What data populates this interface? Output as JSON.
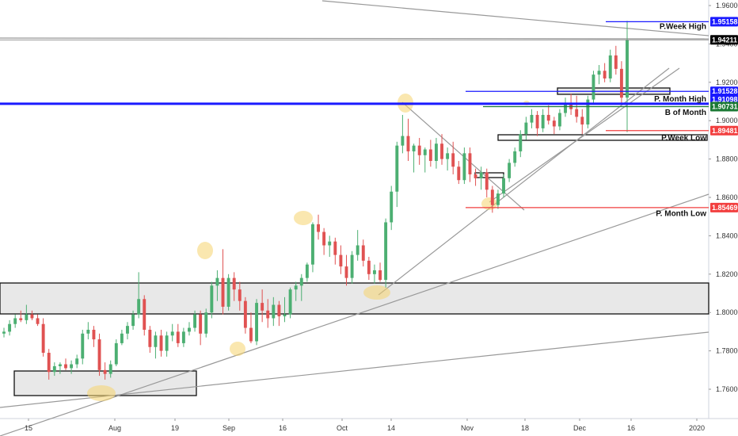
{
  "chart_data": {
    "type": "candlestick",
    "y_ticks": [
      "1.96000",
      "1.94000",
      "1.92000",
      "1.90000",
      "1.88000",
      "1.86000",
      "1.84000",
      "1.82000",
      "1.80000",
      "1.78000",
      "1.76000"
    ],
    "ylim": [
      1.7484,
      1.967
    ],
    "x_ticks": [
      "15",
      "Aug",
      "19",
      "Sep",
      "16",
      "Oct",
      "14",
      "Nov",
      "18",
      "Dec",
      "16",
      "2020"
    ],
    "colors": {
      "up": "#4caf72",
      "down": "#e05252",
      "zone": "#e8e8e8",
      "blue": "#1a1aff",
      "red": "#f23f3f",
      "green": "#1b7a35",
      "grey": "#999999",
      "highlight": "#f5d46e"
    },
    "price_badges": [
      {
        "label": "1.95158",
        "value": 1.95158,
        "color": "#1a1aff"
      },
      {
        "label": "1.94211",
        "value": 1.94211,
        "color": "#000000"
      },
      {
        "label": "1.91528",
        "value": 1.91528,
        "color": "#1a1aff"
      },
      {
        "label": "1.91098",
        "value": 1.91098,
        "color": "#1a1aff"
      },
      {
        "label": "1.90731",
        "value": 1.90731,
        "color": "#1b7a35"
      },
      {
        "label": "1.89481",
        "value": 1.89481,
        "color": "#f23f3f"
      },
      {
        "label": "1.85469",
        "value": 1.85469,
        "color": "#f23f3f"
      }
    ],
    "annotations": [
      {
        "text": "P.Week High",
        "value": 1.9494
      },
      {
        "text": "P. Month High",
        "value": 1.9117
      },
      {
        "text": "B of Month",
        "value": 1.9047
      },
      {
        "text": "P.Week Low",
        "value": 1.8915
      },
      {
        "text": "P. Month Low",
        "value": 1.852
      }
    ],
    "ohlc": [
      [
        1.789,
        1.792,
        1.787,
        1.79
      ],
      [
        1.79,
        1.796,
        1.788,
        1.794
      ],
      [
        1.794,
        1.799,
        1.792,
        1.797
      ],
      [
        1.797,
        1.801,
        1.795,
        1.796
      ],
      [
        1.796,
        1.804,
        1.794,
        1.799
      ],
      [
        1.799,
        1.801,
        1.796,
        1.797
      ],
      [
        1.797,
        1.799,
        1.793,
        1.794
      ],
      [
        1.794,
        1.797,
        1.777,
        1.779
      ],
      [
        1.779,
        1.781,
        1.765,
        1.769
      ],
      [
        1.769,
        1.774,
        1.767,
        1.772
      ],
      [
        1.772,
        1.774,
        1.768,
        1.773
      ],
      [
        1.773,
        1.776,
        1.77,
        1.771
      ],
      [
        1.771,
        1.775,
        1.768,
        1.773
      ],
      [
        1.773,
        1.778,
        1.771,
        1.776
      ],
      [
        1.776,
        1.791,
        1.773,
        1.789
      ],
      [
        1.789,
        1.795,
        1.786,
        1.791
      ],
      [
        1.791,
        1.793,
        1.782,
        1.786
      ],
      [
        1.786,
        1.789,
        1.767,
        1.77
      ],
      [
        1.77,
        1.774,
        1.765,
        1.768
      ],
      [
        1.768,
        1.775,
        1.766,
        1.773
      ],
      [
        1.773,
        1.786,
        1.772,
        1.784
      ],
      [
        1.784,
        1.791,
        1.783,
        1.789
      ],
      [
        1.789,
        1.795,
        1.786,
        1.793
      ],
      [
        1.793,
        1.801,
        1.791,
        1.799
      ],
      [
        1.799,
        1.821,
        1.797,
        1.807
      ],
      [
        1.807,
        1.809,
        1.788,
        1.791
      ],
      [
        1.791,
        1.793,
        1.779,
        1.782
      ],
      [
        1.782,
        1.79,
        1.776,
        1.788
      ],
      [
        1.788,
        1.791,
        1.777,
        1.78
      ],
      [
        1.78,
        1.79,
        1.777,
        1.788
      ],
      [
        1.788,
        1.794,
        1.785,
        1.79
      ],
      [
        1.79,
        1.794,
        1.782,
        1.784
      ],
      [
        1.784,
        1.792,
        1.782,
        1.79
      ],
      [
        1.79,
        1.795,
        1.788,
        1.792
      ],
      [
        1.792,
        1.801,
        1.79,
        1.799
      ],
      [
        1.799,
        1.801,
        1.783,
        1.789
      ],
      [
        1.789,
        1.802,
        1.787,
        1.8
      ],
      [
        1.8,
        1.816,
        1.797,
        1.814
      ],
      [
        1.814,
        1.822,
        1.806,
        1.818
      ],
      [
        1.818,
        1.833,
        1.799,
        1.803
      ],
      [
        1.803,
        1.82,
        1.801,
        1.818
      ],
      [
        1.818,
        1.821,
        1.806,
        1.812
      ],
      [
        1.812,
        1.816,
        1.801,
        1.806
      ],
      [
        1.806,
        1.808,
        1.789,
        1.792
      ],
      [
        1.792,
        1.8,
        1.784,
        1.785
      ],
      [
        1.785,
        1.807,
        1.783,
        1.805
      ],
      [
        1.805,
        1.812,
        1.795,
        1.801
      ],
      [
        1.801,
        1.807,
        1.792,
        1.797
      ],
      [
        1.797,
        1.808,
        1.793,
        1.804
      ],
      [
        1.804,
        1.806,
        1.793,
        1.798
      ],
      [
        1.798,
        1.808,
        1.795,
        1.799
      ],
      [
        1.799,
        1.813,
        1.797,
        1.812
      ],
      [
        1.812,
        1.816,
        1.806,
        1.814
      ],
      [
        1.814,
        1.82,
        1.806,
        1.818
      ],
      [
        1.818,
        1.826,
        1.816,
        1.825
      ],
      [
        1.825,
        1.847,
        1.821,
        1.846
      ],
      [
        1.846,
        1.851,
        1.838,
        1.842
      ],
      [
        1.842,
        1.844,
        1.83,
        1.835
      ],
      [
        1.835,
        1.84,
        1.829,
        1.837
      ],
      [
        1.837,
        1.839,
        1.825,
        1.83
      ],
      [
        1.83,
        1.835,
        1.82,
        1.824
      ],
      [
        1.824,
        1.83,
        1.814,
        1.818
      ],
      [
        1.818,
        1.832,
        1.815,
        1.83
      ],
      [
        1.83,
        1.843,
        1.827,
        1.835
      ],
      [
        1.835,
        1.838,
        1.824,
        1.827
      ],
      [
        1.827,
        1.829,
        1.817,
        1.82
      ],
      [
        1.82,
        1.825,
        1.815,
        1.822
      ],
      [
        1.822,
        1.826,
        1.816,
        1.817
      ],
      [
        1.817,
        1.849,
        1.813,
        1.847
      ],
      [
        1.847,
        1.866,
        1.843,
        1.863
      ],
      [
        1.863,
        1.889,
        1.855,
        1.887
      ],
      [
        1.887,
        1.903,
        1.883,
        1.892
      ],
      [
        1.892,
        1.901,
        1.879,
        1.884
      ],
      [
        1.884,
        1.888,
        1.873,
        1.887
      ],
      [
        1.887,
        1.891,
        1.877,
        1.882
      ],
      [
        1.882,
        1.886,
        1.873,
        1.885
      ],
      [
        1.885,
        1.89,
        1.876,
        1.879
      ],
      [
        1.879,
        1.891,
        1.875,
        1.888
      ],
      [
        1.888,
        1.893,
        1.877,
        1.88
      ],
      [
        1.88,
        1.886,
        1.874,
        1.883
      ],
      [
        1.883,
        1.889,
        1.872,
        1.876
      ],
      [
        1.876,
        1.879,
        1.867,
        1.869
      ],
      [
        1.869,
        1.886,
        1.867,
        1.883
      ],
      [
        1.883,
        1.886,
        1.868,
        1.872
      ],
      [
        1.872,
        1.875,
        1.866,
        1.87
      ],
      [
        1.87,
        1.876,
        1.864,
        1.873
      ],
      [
        1.873,
        1.875,
        1.86,
        1.864
      ],
      [
        1.864,
        1.866,
        1.852,
        1.856
      ],
      [
        1.856,
        1.864,
        1.854,
        1.862
      ],
      [
        1.862,
        1.872,
        1.86,
        1.87
      ],
      [
        1.87,
        1.88,
        1.868,
        1.878
      ],
      [
        1.878,
        1.886,
        1.876,
        1.884
      ],
      [
        1.884,
        1.895,
        1.881,
        1.893
      ],
      [
        1.893,
        1.902,
        1.89,
        1.899
      ],
      [
        1.899,
        1.906,
        1.896,
        1.903
      ],
      [
        1.903,
        1.905,
        1.892,
        1.896
      ],
      [
        1.896,
        1.906,
        1.894,
        1.903
      ],
      [
        1.903,
        1.908,
        1.898,
        1.9
      ],
      [
        1.9,
        1.902,
        1.893,
        1.897
      ],
      [
        1.897,
        1.906,
        1.895,
        1.904
      ],
      [
        1.904,
        1.912,
        1.902,
        1.909
      ],
      [
        1.909,
        1.914,
        1.903,
        1.906
      ],
      [
        1.906,
        1.913,
        1.899,
        1.902
      ],
      [
        1.902,
        1.906,
        1.893,
        1.898
      ],
      [
        1.898,
        1.913,
        1.896,
        1.911
      ],
      [
        1.911,
        1.926,
        1.909,
        1.924
      ],
      [
        1.924,
        1.929,
        1.919,
        1.926
      ],
      [
        1.926,
        1.93,
        1.92,
        1.922
      ],
      [
        1.922,
        1.937,
        1.92,
        1.934
      ],
      [
        1.934,
        1.939,
        1.924,
        1.927
      ],
      [
        1.927,
        1.931,
        1.909,
        1.912
      ],
      [
        1.912,
        1.952,
        1.894,
        1.942
      ]
    ]
  }
}
